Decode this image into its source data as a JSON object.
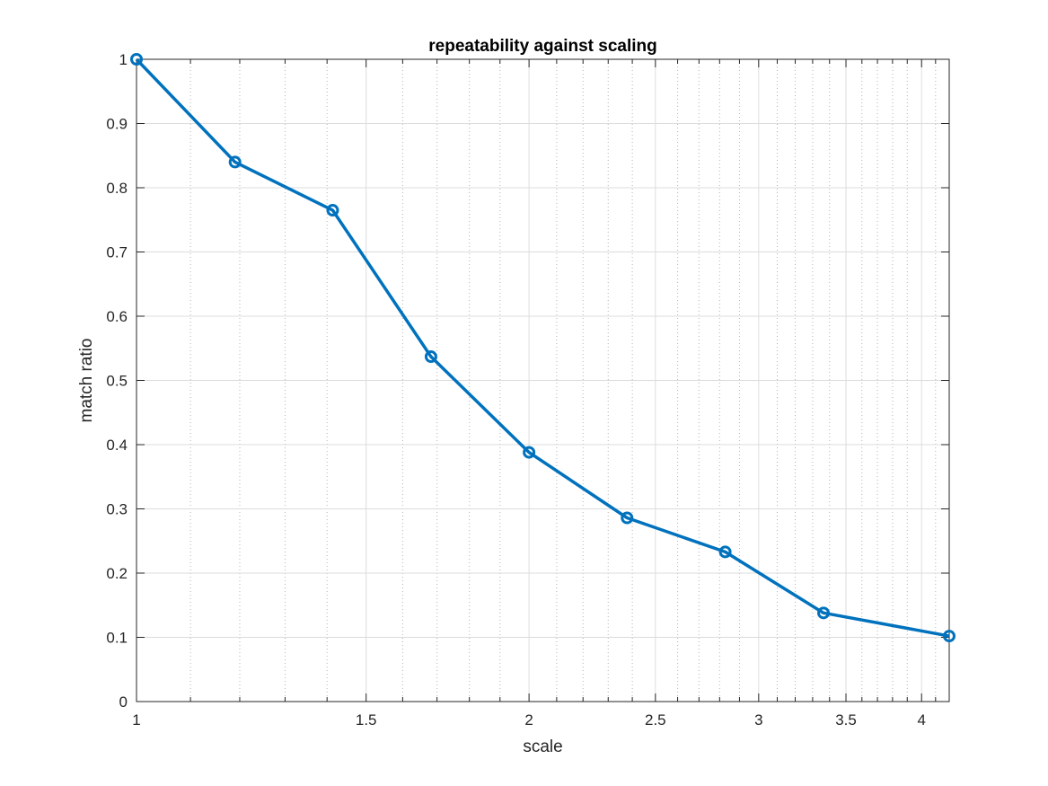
{
  "chart_data": {
    "type": "line",
    "title": "repeatability against scaling",
    "xlabel": "scale",
    "ylabel": "match ratio",
    "xscale": "log",
    "xlim": [
      1,
      4.2
    ],
    "ylim": [
      0,
      1
    ],
    "xticks": [
      1,
      1.5,
      2,
      2.5,
      3,
      3.5,
      4
    ],
    "xtick_labels": [
      "1",
      "1.5",
      "2",
      "2.5",
      "3",
      "3.5",
      "4"
    ],
    "yticks": [
      0,
      0.1,
      0.2,
      0.3,
      0.4,
      0.5,
      0.6,
      0.7,
      0.8,
      0.9,
      1
    ],
    "ytick_labels": [
      "0",
      "0.1",
      "0.2",
      "0.3",
      "0.4",
      "0.5",
      "0.6",
      "0.7",
      "0.8",
      "0.9",
      "1"
    ],
    "grid": true,
    "minor_grid": true,
    "marker": "circle",
    "color": "#0072BD",
    "series": [
      {
        "x": [
          1.0,
          1.19,
          1.414,
          1.682,
          2.0,
          2.378,
          2.828,
          3.364,
          4.2
        ],
        "y": [
          1.0,
          0.84,
          0.765,
          0.537,
          0.388,
          0.286,
          0.233,
          0.138,
          0.102
        ]
      }
    ]
  }
}
